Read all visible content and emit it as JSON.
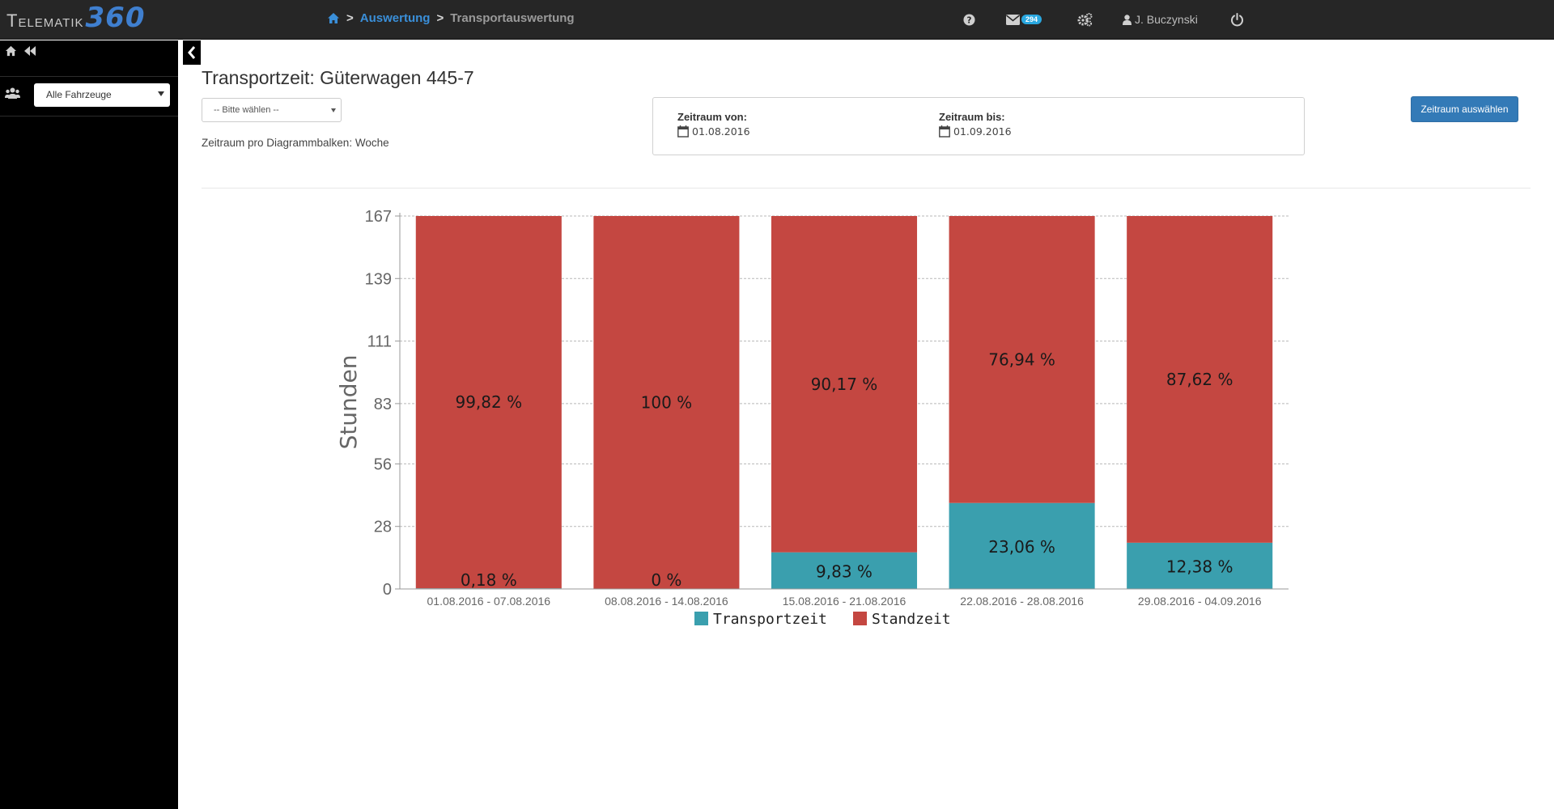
{
  "app": {
    "logo_part1": "Telematik",
    "logo_part2": "360"
  },
  "breadcrumb": {
    "section": "Auswertung",
    "current": "Transportauswertung"
  },
  "topbar": {
    "message_count": "294",
    "username": "J. Buczynski",
    "icons": [
      "question-circle-icon",
      "envelope-icon",
      "cogs-icon",
      "user-icon",
      "power-icon"
    ]
  },
  "sidebar": {
    "vehicle_select": "Alle Fahrzeuge"
  },
  "main": {
    "title": "Transportzeit: Güterwagen 445-7",
    "select_placeholder": "-- Bitte wählen --",
    "period_info": "Zeitraum pro Diagrammbalken: Woche",
    "date_from_label": "Zeitraum von:",
    "date_from_value": "01.08.2016",
    "date_to_label": "Zeitraum bis:",
    "date_to_value": "01.09.2016",
    "apply_button": "Zeitraum auswählen"
  },
  "colors": {
    "transport": "#3a9fae",
    "stand": "#c44741",
    "accent": "#337ab7"
  },
  "chart_data": {
    "type": "bar",
    "stacked": true,
    "ylabel": "Stunden",
    "xlabel": "",
    "yticks": [
      0,
      28,
      56,
      83,
      111,
      139,
      167
    ],
    "ylim": [
      0,
      167
    ],
    "grid": true,
    "legend_position": "bottom",
    "categories": [
      "01.08.2016 - 07.08.2016",
      "08.08.2016 - 14.08.2016",
      "15.08.2016 - 21.08.2016",
      "22.08.2016 - 28.08.2016",
      "29.08.2016 - 04.09.2016"
    ],
    "series": [
      {
        "name": "Transportzeit",
        "values": [
          0.3,
          0,
          16.4,
          38.5,
          20.7
        ],
        "labels": [
          "0,18 %",
          "0 %",
          "9,83 %",
          "23,06 %",
          "12,38 %"
        ]
      },
      {
        "name": "Standzeit",
        "values": [
          166.7,
          167,
          150.6,
          128.5,
          146.3
        ],
        "labels": [
          "99,82 %",
          "100 %",
          "90,17 %",
          "76,94 %",
          "87,62 %"
        ]
      }
    ]
  }
}
